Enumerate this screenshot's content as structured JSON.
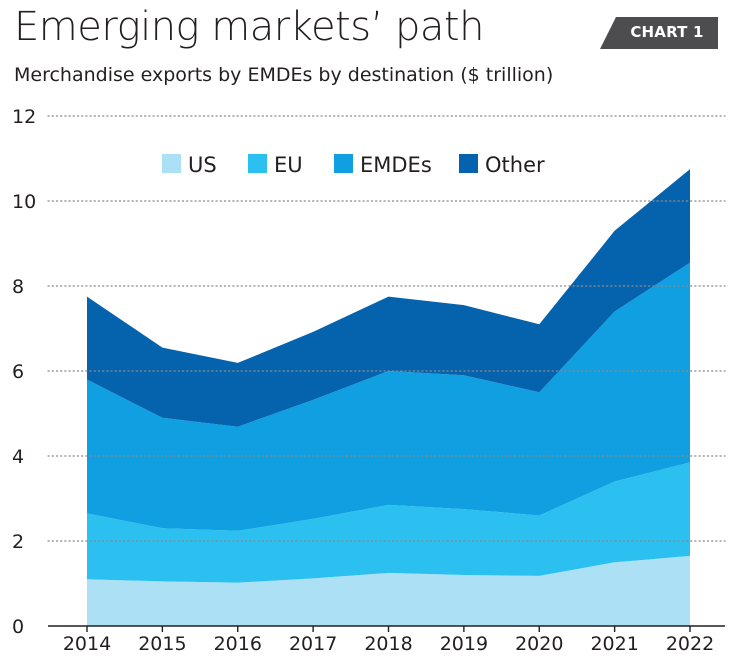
{
  "header": {
    "title": "Emerging markets’ path",
    "badge": "CHART 1",
    "subtitle": "Merchandise exports by EMDEs by destination ($ trillion)"
  },
  "chart_data": {
    "type": "area",
    "stacked": true,
    "categories": [
      "2014",
      "2015",
      "2016",
      "2017",
      "2018",
      "2019",
      "2020",
      "2021",
      "2022"
    ],
    "series": [
      {
        "name": "US",
        "color": "#ace0f5",
        "values": [
          1.1,
          1.05,
          1.02,
          1.12,
          1.25,
          1.2,
          1.18,
          1.5,
          1.65
        ]
      },
      {
        "name": "EU",
        "color": "#2cc0f0",
        "values": [
          1.55,
          1.25,
          1.22,
          1.4,
          1.6,
          1.55,
          1.42,
          1.9,
          2.2
        ]
      },
      {
        "name": "EMDEs",
        "color": "#109fe0",
        "values": [
          3.15,
          2.6,
          2.45,
          2.8,
          3.15,
          3.15,
          2.9,
          4.0,
          4.7
        ]
      },
      {
        "name": "Other",
        "color": "#0563ad",
        "values": [
          1.95,
          1.65,
          1.5,
          1.6,
          1.75,
          1.65,
          1.6,
          1.9,
          2.2
        ]
      }
    ],
    "yticks": [
      0,
      2,
      4,
      6,
      8,
      10,
      12
    ],
    "ylim": [
      0,
      12
    ],
    "grid": true,
    "legend_position": "top-center"
  }
}
